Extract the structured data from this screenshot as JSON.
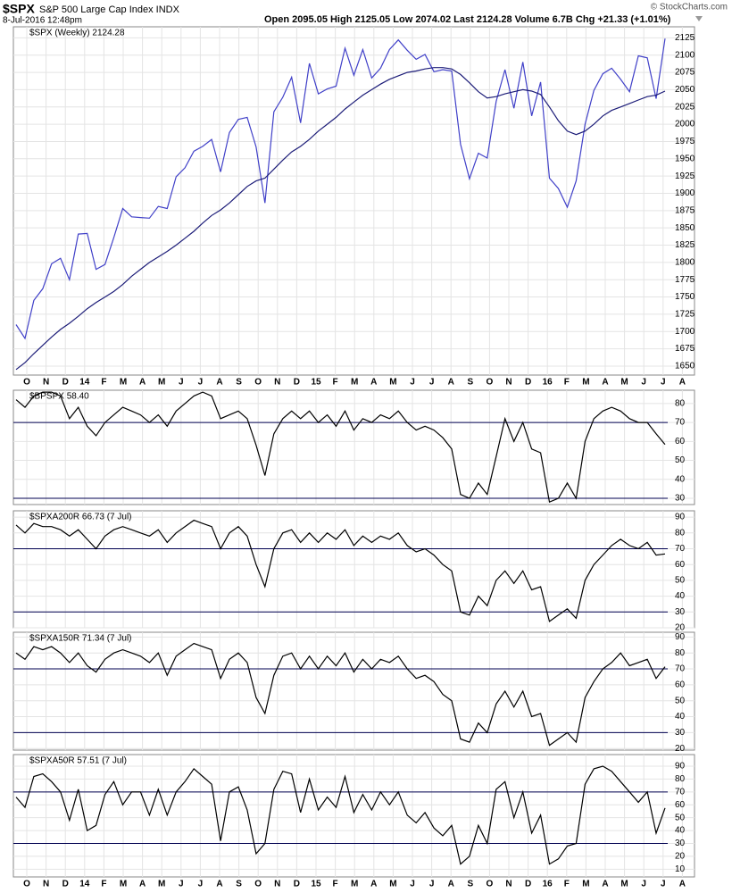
{
  "header": {
    "symbol": "$SPX",
    "name": "S&P 500 Large Cap Index INDX",
    "date": "8-Jul-2016 12:48pm",
    "quote": "Open 2095.05 High 2125.05 Low 2074.02 Last 2124.28 Volume 6.7B Chg +21.33 (+1.01%)",
    "credit": "© StockCharts.com"
  },
  "x_labels": [
    "O",
    "N",
    "D",
    "14",
    "F",
    "M",
    "A",
    "M",
    "J",
    "J",
    "A",
    "S",
    "O",
    "N",
    "D",
    "15",
    "F",
    "M",
    "A",
    "M",
    "J",
    "J",
    "A",
    "S",
    "O",
    "N",
    "D",
    "16",
    "F",
    "M",
    "A",
    "M",
    "J",
    "J",
    "A"
  ],
  "chart_data": [
    {
      "type": "line",
      "ylim": [
        1637,
        2141
      ],
      "yticks": [
        1650,
        1675,
        1700,
        1725,
        1750,
        1775,
        1800,
        1825,
        1850,
        1875,
        1900,
        1925,
        1950,
        1975,
        2000,
        2025,
        2050,
        2075,
        2100,
        2125
      ],
      "grid": true,
      "series": [
        {
          "name": "$SPX (Weekly) 2124.28",
          "color": "#4040c8",
          "values": [
            1710,
            1690,
            1745,
            1762,
            1798,
            1806,
            1775,
            1841,
            1842,
            1790,
            1797,
            1836,
            1878,
            1866,
            1865,
            1864,
            1881,
            1878,
            1924,
            1937,
            1961,
            1968,
            1978,
            1931,
            1988,
            2007,
            2010,
            1967,
            1886,
            2018,
            2039,
            2068,
            2002,
            2088,
            2044,
            2051,
            2055,
            2110,
            2071,
            2108,
            2067,
            2081,
            2108,
            2122,
            2107,
            2094,
            2101,
            2076,
            2079,
            2077,
            1971,
            1921,
            1958,
            1951,
            2033,
            2079,
            2023,
            2090,
            2012,
            2061,
            1922,
            1907,
            1880,
            1918,
            2000,
            2049,
            2073,
            2081,
            2065,
            2047,
            2099,
            2096,
            2037,
            2124
          ]
        },
        {
          "color": "#1c1c78",
          "values": [
            1645,
            1655,
            1668,
            1680,
            1692,
            1703,
            1712,
            1722,
            1733,
            1742,
            1750,
            1758,
            1768,
            1780,
            1790,
            1800,
            1808,
            1816,
            1825,
            1835,
            1845,
            1857,
            1868,
            1876,
            1886,
            1898,
            1910,
            1918,
            1922,
            1935,
            1948,
            1960,
            1968,
            1978,
            1990,
            2000,
            2010,
            2022,
            2032,
            2042,
            2050,
            2058,
            2065,
            2070,
            2075,
            2077,
            2080,
            2082,
            2082,
            2080,
            2072,
            2060,
            2047,
            2038,
            2040,
            2044,
            2047,
            2050,
            2048,
            2043,
            2025,
            2005,
            1990,
            1985,
            1990,
            2000,
            2012,
            2020,
            2025,
            2030,
            2035,
            2040,
            2042,
            2048
          ]
        }
      ]
    },
    {
      "type": "line",
      "ylim": [
        26.7,
        87
      ],
      "yticks": [
        30,
        40,
        50,
        60,
        70,
        80
      ],
      "grid": true,
      "hlines": [
        70,
        30
      ],
      "series": [
        {
          "name": "$BPSPX 58.40",
          "color": "#000000",
          "values": [
            82,
            78,
            84,
            86,
            86,
            84,
            72,
            78,
            68,
            63,
            70,
            74,
            78,
            76,
            74,
            70,
            74,
            68,
            76,
            80,
            84,
            86,
            84,
            72,
            74,
            76,
            72,
            58,
            42,
            64,
            72,
            76,
            72,
            76,
            70,
            74,
            68,
            76,
            66,
            72,
            70,
            74,
            72,
            76,
            70,
            66,
            68,
            66,
            62,
            56,
            32,
            30,
            38,
            32,
            52,
            72,
            60,
            70,
            56,
            54,
            28,
            30,
            38,
            30,
            60,
            72,
            76,
            78,
            76,
            72,
            70,
            70,
            64,
            58.4
          ]
        }
      ]
    },
    {
      "type": "line",
      "ylim": [
        20,
        94
      ],
      "yticks": [
        20,
        30,
        40,
        50,
        60,
        70,
        80,
        90
      ],
      "grid": true,
      "hlines": [
        70,
        30
      ],
      "series": [
        {
          "name": "$SPXA200R 66.73 (7 Jul)",
          "color": "#000000",
          "values": [
            85,
            80,
            86,
            84,
            84,
            82,
            78,
            82,
            76,
            70,
            78,
            82,
            84,
            82,
            80,
            78,
            82,
            74,
            80,
            84,
            88,
            86,
            84,
            70,
            80,
            84,
            78,
            60,
            46,
            70,
            80,
            82,
            74,
            80,
            74,
            80,
            76,
            82,
            72,
            78,
            74,
            78,
            76,
            80,
            72,
            68,
            70,
            66,
            60,
            56,
            30,
            28,
            40,
            34,
            50,
            56,
            48,
            56,
            44,
            46,
            24,
            28,
            32,
            26,
            50,
            60,
            66,
            72,
            76,
            72,
            70,
            74,
            66,
            66.73
          ]
        }
      ]
    },
    {
      "type": "line",
      "ylim": [
        19,
        93
      ],
      "yticks": [
        20,
        30,
        40,
        50,
        60,
        70,
        80,
        90
      ],
      "grid": true,
      "hlines": [
        70,
        30
      ],
      "series": [
        {
          "name": "$SPXA150R 71.34 (7 Jul)",
          "color": "#000000",
          "values": [
            80,
            76,
            84,
            82,
            84,
            80,
            74,
            80,
            72,
            68,
            76,
            80,
            82,
            80,
            78,
            74,
            80,
            66,
            78,
            82,
            86,
            84,
            82,
            64,
            76,
            80,
            74,
            52,
            42,
            66,
            78,
            80,
            70,
            78,
            70,
            78,
            72,
            80,
            68,
            76,
            70,
            76,
            74,
            78,
            70,
            64,
            66,
            62,
            54,
            50,
            26,
            24,
            36,
            30,
            48,
            56,
            46,
            56,
            40,
            42,
            22,
            26,
            30,
            24,
            52,
            62,
            70,
            74,
            80,
            72,
            74,
            76,
            64,
            71.34
          ]
        }
      ]
    },
    {
      "type": "line",
      "ylim": [
        4,
        99
      ],
      "yticks": [
        10,
        20,
        30,
        40,
        50,
        60,
        70,
        80,
        90
      ],
      "grid": true,
      "hlines": [
        70,
        30
      ],
      "series": [
        {
          "name": "$SPXA50R 57.51 (7 Jul)",
          "color": "#000000",
          "values": [
            66,
            58,
            82,
            84,
            78,
            70,
            48,
            72,
            40,
            44,
            68,
            78,
            60,
            70,
            70,
            52,
            72,
            52,
            70,
            78,
            88,
            82,
            76,
            32,
            70,
            74,
            56,
            22,
            30,
            72,
            86,
            84,
            54,
            80,
            56,
            66,
            58,
            82,
            54,
            68,
            56,
            70,
            60,
            70,
            52,
            46,
            54,
            42,
            36,
            44,
            14,
            20,
            44,
            30,
            72,
            78,
            50,
            70,
            38,
            52,
            14,
            18,
            28,
            30,
            76,
            88,
            90,
            86,
            78,
            70,
            62,
            70,
            38,
            57.51
          ]
        }
      ]
    }
  ]
}
